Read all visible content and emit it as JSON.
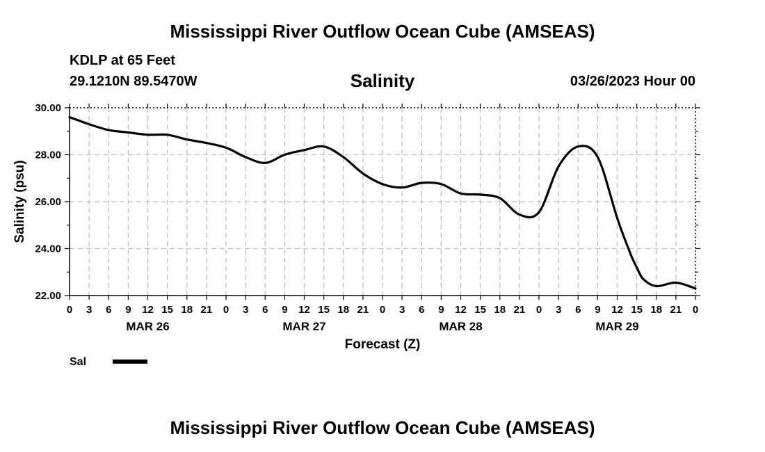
{
  "header": {
    "title": "Mississippi River Outflow Ocean Cube (AMSEAS)",
    "station": "KDLP at 65 Feet",
    "location": "29.1210N  89.5470W",
    "variable": "Salinity",
    "run_time": "03/26/2023 Hour 00"
  },
  "footer": {
    "title": "Mississippi River Outflow Ocean Cube (AMSEAS)"
  },
  "colors": {
    "line": "#000000",
    "grid": "#bdbdbd"
  },
  "chart_data": {
    "type": "line",
    "title": "Salinity",
    "xlabel": "Forecast (Z)",
    "ylabel": "Salinity (psu)",
    "x_unit": "forecast hour",
    "xlim": [
      0,
      96
    ],
    "ylim": [
      22,
      30
    ],
    "yticks": [
      22,
      24,
      26,
      28,
      30
    ],
    "ytick_labels": [
      "22.00",
      "24.00",
      "26.00",
      "28.00",
      "30.00"
    ],
    "xticks": [
      0,
      3,
      6,
      9,
      12,
      15,
      18,
      21,
      24,
      27,
      30,
      33,
      36,
      39,
      42,
      45,
      48,
      51,
      54,
      57,
      60,
      63,
      66,
      69,
      72,
      75,
      78,
      81,
      84,
      87,
      90,
      93,
      96
    ],
    "xtick_labels": [
      "0",
      "3",
      "6",
      "9",
      "12",
      "15",
      "18",
      "21",
      "0",
      "3",
      "6",
      "9",
      "12",
      "15",
      "18",
      "21",
      "0",
      "3",
      "6",
      "9",
      "12",
      "15",
      "18",
      "21",
      "0",
      "3",
      "6",
      "9",
      "12",
      "15",
      "18",
      "21",
      "0"
    ],
    "day_labels": [
      {
        "label": "MAR 26",
        "hour": 12
      },
      {
        "label": "MAR 27",
        "hour": 36
      },
      {
        "label": "MAR 28",
        "hour": 60
      },
      {
        "label": "MAR 29",
        "hour": 84
      }
    ],
    "grid": true,
    "legend": {
      "placement": "bottom-left",
      "label": "Sal"
    },
    "series": [
      {
        "name": "Sal",
        "x": [
          0,
          3,
          6,
          9,
          12,
          15,
          18,
          21,
          24,
          27,
          30,
          33,
          36,
          39,
          42,
          45,
          48,
          51,
          54,
          57,
          60,
          63,
          66,
          69,
          72,
          75,
          78,
          81,
          84,
          86,
          87,
          88,
          90,
          93,
          96
        ],
        "values": [
          29.6,
          29.3,
          29.05,
          28.95,
          28.85,
          28.85,
          28.65,
          28.5,
          28.3,
          27.9,
          27.65,
          28.0,
          28.2,
          28.35,
          27.9,
          27.2,
          26.75,
          26.6,
          26.8,
          26.75,
          26.35,
          26.3,
          26.15,
          25.45,
          25.55,
          27.5,
          28.35,
          27.9,
          25.3,
          23.8,
          23.2,
          22.7,
          22.4,
          22.55,
          22.3
        ]
      }
    ]
  }
}
